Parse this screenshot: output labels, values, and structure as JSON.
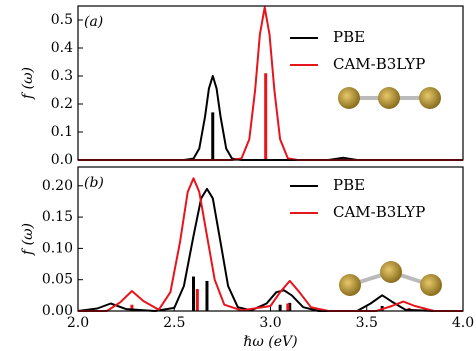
{
  "chart_data": [
    {
      "type": "line",
      "label": "(a)",
      "ylabel": "f (ω)",
      "xlim": [
        2.0,
        4.0
      ],
      "ylim": [
        0,
        0.55
      ],
      "yticks": [
        {
          "value": 0,
          "label": "0.0"
        },
        0.1,
        0.2,
        0.3,
        0.4,
        0.5
      ],
      "series": [
        {
          "name": "PBE",
          "color": "#000000",
          "x": [
            2.0,
            2.55,
            2.6,
            2.63,
            2.66,
            2.68,
            2.7,
            2.72,
            2.74,
            2.77,
            2.8,
            2.85,
            3.3,
            3.38,
            3.45,
            4.0
          ],
          "values": [
            0,
            0,
            0.005,
            0.041,
            0.156,
            0.255,
            0.3,
            0.255,
            0.156,
            0.041,
            0.005,
            0,
            0,
            0.008,
            0,
            0
          ]
        },
        {
          "name": "CAM-B3LYP",
          "color": "#e8141c",
          "x": [
            2.0,
            2.8,
            2.85,
            2.89,
            2.92,
            2.945,
            2.97,
            2.995,
            3.02,
            3.05,
            3.09,
            3.14,
            4.0
          ],
          "values": [
            0,
            0,
            0.006,
            0.074,
            0.249,
            0.449,
            0.545,
            0.449,
            0.249,
            0.074,
            0.006,
            0,
            0
          ]
        }
      ],
      "sticks": [
        {
          "color": "#000000",
          "x": [
            2.7
          ],
          "values": [
            0.17
          ]
        },
        {
          "color": "#e8141c",
          "x": [
            2.975
          ],
          "values": [
            0.31
          ]
        }
      ]
    },
    {
      "type": "line",
      "label": "(b)",
      "ylabel": "f (ω)",
      "xlabel": "ℏω (eV)",
      "xlim": [
        2.0,
        4.0
      ],
      "ylim": [
        0,
        0.23
      ],
      "xticks": [
        {
          "value": 2,
          "label": "2.0"
        },
        2.5,
        {
          "value": 3,
          "label": "3.0"
        },
        3.5,
        {
          "value": 4,
          "label": "4.0"
        }
      ],
      "yticks": [
        {
          "value": 0,
          "label": "0.00"
        },
        {
          "value": 0.05,
          "label": "0.05"
        },
        {
          "value": 0.1,
          "label": "0.10"
        },
        {
          "value": 0.15,
          "label": "0.15"
        },
        {
          "value": 0.2,
          "label": "0.20"
        }
      ],
      "series": [
        {
          "name": "PBE",
          "color": "#000000",
          "x": [
            2.0,
            2.1,
            2.17,
            2.25,
            2.4,
            2.5,
            2.55,
            2.6,
            2.64,
            2.67,
            2.7,
            2.74,
            2.78,
            2.83,
            2.9,
            2.98,
            3.03,
            3.07,
            3.11,
            3.17,
            3.25,
            3.45,
            3.52,
            3.58,
            3.63,
            3.7,
            3.85,
            4.0
          ],
          "values": [
            0,
            0.004,
            0.012,
            0.003,
            0,
            0.005,
            0.04,
            0.12,
            0.18,
            0.195,
            0.18,
            0.11,
            0.04,
            0.006,
            0.001,
            0.012,
            0.03,
            0.033,
            0.025,
            0.006,
            0,
            0,
            0.012,
            0.025,
            0.015,
            0.002,
            0,
            0
          ]
        },
        {
          "name": "CAM-B3LYP",
          "color": "#e8141c",
          "x": [
            2.0,
            2.15,
            2.22,
            2.28,
            2.34,
            2.42,
            2.48,
            2.53,
            2.57,
            2.6,
            2.63,
            2.67,
            2.71,
            2.76,
            2.85,
            3.0,
            3.05,
            3.1,
            3.15,
            3.21,
            3.3,
            3.55,
            3.63,
            3.69,
            3.75,
            3.85,
            4.0
          ],
          "values": [
            0,
            0,
            0.014,
            0.032,
            0.016,
            0.002,
            0.03,
            0.11,
            0.19,
            0.212,
            0.19,
            0.12,
            0.05,
            0.01,
            0.001,
            0.008,
            0.03,
            0.048,
            0.03,
            0.006,
            0,
            0,
            0.008,
            0.015,
            0.008,
            0,
            0
          ]
        }
      ],
      "sticks": [
        {
          "color": "#000000",
          "x": [
            2.6,
            2.67,
            3.05,
            3.1,
            3.58
          ],
          "values": [
            0.055,
            0.048,
            0.01,
            0.013,
            0.008
          ]
        },
        {
          "color": "#e8141c",
          "x": [
            2.28,
            2.62,
            3.09,
            3.72
          ],
          "values": [
            0.01,
            0.035,
            0.012,
            0.005
          ]
        }
      ]
    }
  ]
}
